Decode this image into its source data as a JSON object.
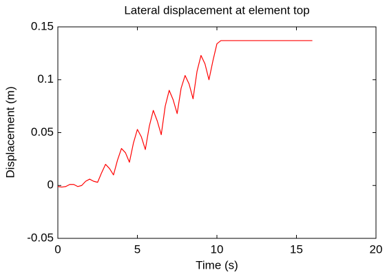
{
  "chart_data": {
    "type": "line",
    "title": "Lateral displacement at element top",
    "xlabel": "Time (s)",
    "ylabel": "Displacement (m)",
    "x": [
      0,
      0.25,
      0.5,
      0.75,
      1.0,
      1.25,
      1.5,
      1.75,
      2.0,
      2.25,
      2.5,
      2.75,
      3.0,
      3.25,
      3.5,
      3.75,
      4.0,
      4.25,
      4.5,
      4.75,
      5.0,
      5.25,
      5.5,
      5.75,
      6.0,
      6.25,
      6.5,
      6.75,
      7.0,
      7.25,
      7.5,
      7.75,
      8.0,
      8.25,
      8.5,
      8.75,
      9.0,
      9.25,
      9.5,
      9.75,
      10.0,
      10.25,
      10.5,
      16
    ],
    "series": [
      {
        "color": "#ff0000",
        "values": [
          -0.001,
          -0.0015,
          -0.001,
          0.001,
          0.001,
          -0.001,
          0,
          0.004,
          0.006,
          0.004,
          0.003,
          0.012,
          0.02,
          0.016,
          0.01,
          0.024,
          0.035,
          0.031,
          0.022,
          0.04,
          0.053,
          0.046,
          0.034,
          0.056,
          0.071,
          0.061,
          0.048,
          0.075,
          0.09,
          0.081,
          0.068,
          0.092,
          0.104,
          0.096,
          0.082,
          0.108,
          0.123,
          0.115,
          0.1,
          0.118,
          0.134,
          0.137,
          0.137,
          0.137
        ]
      }
    ],
    "xlim": [
      0,
      20
    ],
    "xticks": [
      0,
      5,
      10,
      15,
      20
    ],
    "ylim": [
      -0.05,
      0.15
    ],
    "yticks": [
      -0.05,
      0,
      0.05,
      0.1,
      0.15
    ]
  }
}
